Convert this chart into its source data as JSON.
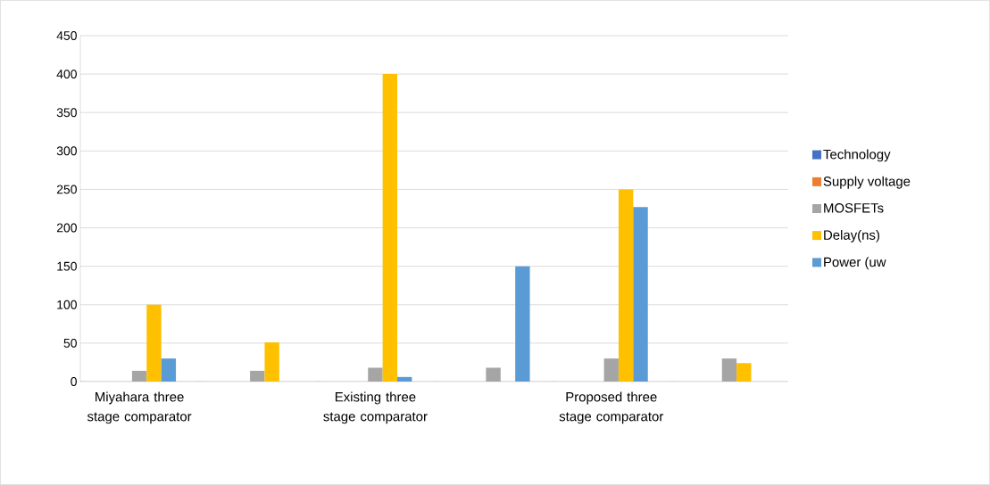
{
  "chart_data": {
    "type": "bar",
    "categories": [
      "Miyahara three stage comparator",
      null,
      "Existing three stage comparator",
      null,
      "Proposed three stage comparator",
      null
    ],
    "series": [
      {
        "name": "Technology",
        "color": "#4472c4",
        "values": [
          0,
          0,
          0,
          0,
          0,
          0
        ]
      },
      {
        "name": "Supply voltage",
        "color": "#ed7d31",
        "values": [
          0,
          0,
          0,
          0,
          0,
          0
        ]
      },
      {
        "name": "MOSFETs",
        "color": "#a5a5a5",
        "values": [
          14,
          14,
          18,
          18,
          30,
          30
        ]
      },
      {
        "name": "Delay(ns)",
        "color": "#ffc000",
        "values": [
          100,
          51,
          400,
          0,
          250,
          24
        ]
      },
      {
        "name": "Power (uw",
        "color": "#5b9bd5",
        "values": [
          30,
          0,
          6,
          150,
          227,
          0
        ]
      }
    ],
    "ylim": [
      0,
      450
    ],
    "yticks": [
      0,
      50,
      100,
      150,
      200,
      250,
      300,
      350,
      400,
      450
    ],
    "grid": "y",
    "legend": "right"
  }
}
